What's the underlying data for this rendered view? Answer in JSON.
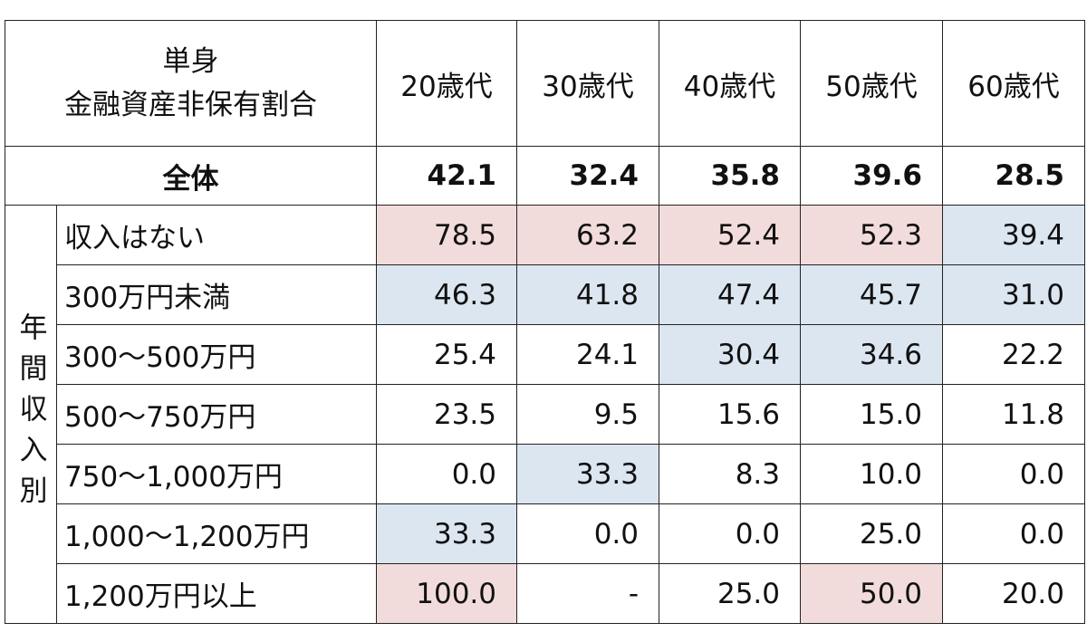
{
  "header": {
    "title": [
      "単身",
      "金融資産非保有割合"
    ],
    "columns": [
      "20歳代",
      "30歳代",
      "40歳代",
      "50歳代",
      "60歳代"
    ]
  },
  "overall": {
    "label": "全体",
    "values": [
      "42.1",
      "32.4",
      "35.8",
      "39.6",
      "28.5"
    ]
  },
  "group_label": "年間収入別",
  "rows": [
    {
      "label": "収入はない",
      "values": [
        "78.5",
        "63.2",
        "52.4",
        "52.3",
        "39.4"
      ],
      "fills": [
        "#f2dcdb",
        "#f2dcdb",
        "#f2dcdb",
        "#f2dcdb",
        "#dce6f1"
      ]
    },
    {
      "label": "300万円未満",
      "values": [
        "46.3",
        "41.8",
        "47.4",
        "45.7",
        "31.0"
      ],
      "fills": [
        "#dce6f1",
        "#dce6f1",
        "#dce6f1",
        "#dce6f1",
        "#dce6f1"
      ]
    },
    {
      "label": "300〜500万円",
      "values": [
        "25.4",
        "24.1",
        "30.4",
        "34.6",
        "22.2"
      ],
      "fills": [
        null,
        null,
        "#dce6f1",
        "#dce6f1",
        null
      ]
    },
    {
      "label": "500〜750万円",
      "values": [
        "23.5",
        "9.5",
        "15.6",
        "15.0",
        "11.8"
      ],
      "fills": [
        null,
        null,
        null,
        null,
        null
      ]
    },
    {
      "label": "750〜1,000万円",
      "values": [
        "0.0",
        "33.3",
        "8.3",
        "10.0",
        "0.0"
      ],
      "fills": [
        null,
        "#dce6f1",
        null,
        null,
        null
      ]
    },
    {
      "label": "1,000〜1,200万円",
      "values": [
        "33.3",
        "0.0",
        "0.0",
        "25.0",
        "0.0"
      ],
      "fills": [
        "#dce6f1",
        null,
        null,
        null,
        null
      ]
    },
    {
      "label": "1,200万円以上",
      "values": [
        "100.0",
        "-",
        "25.0",
        "50.0",
        "20.0"
      ],
      "fills": [
        "#f2dcdb",
        null,
        null,
        "#f2dcdb",
        null
      ]
    }
  ]
}
